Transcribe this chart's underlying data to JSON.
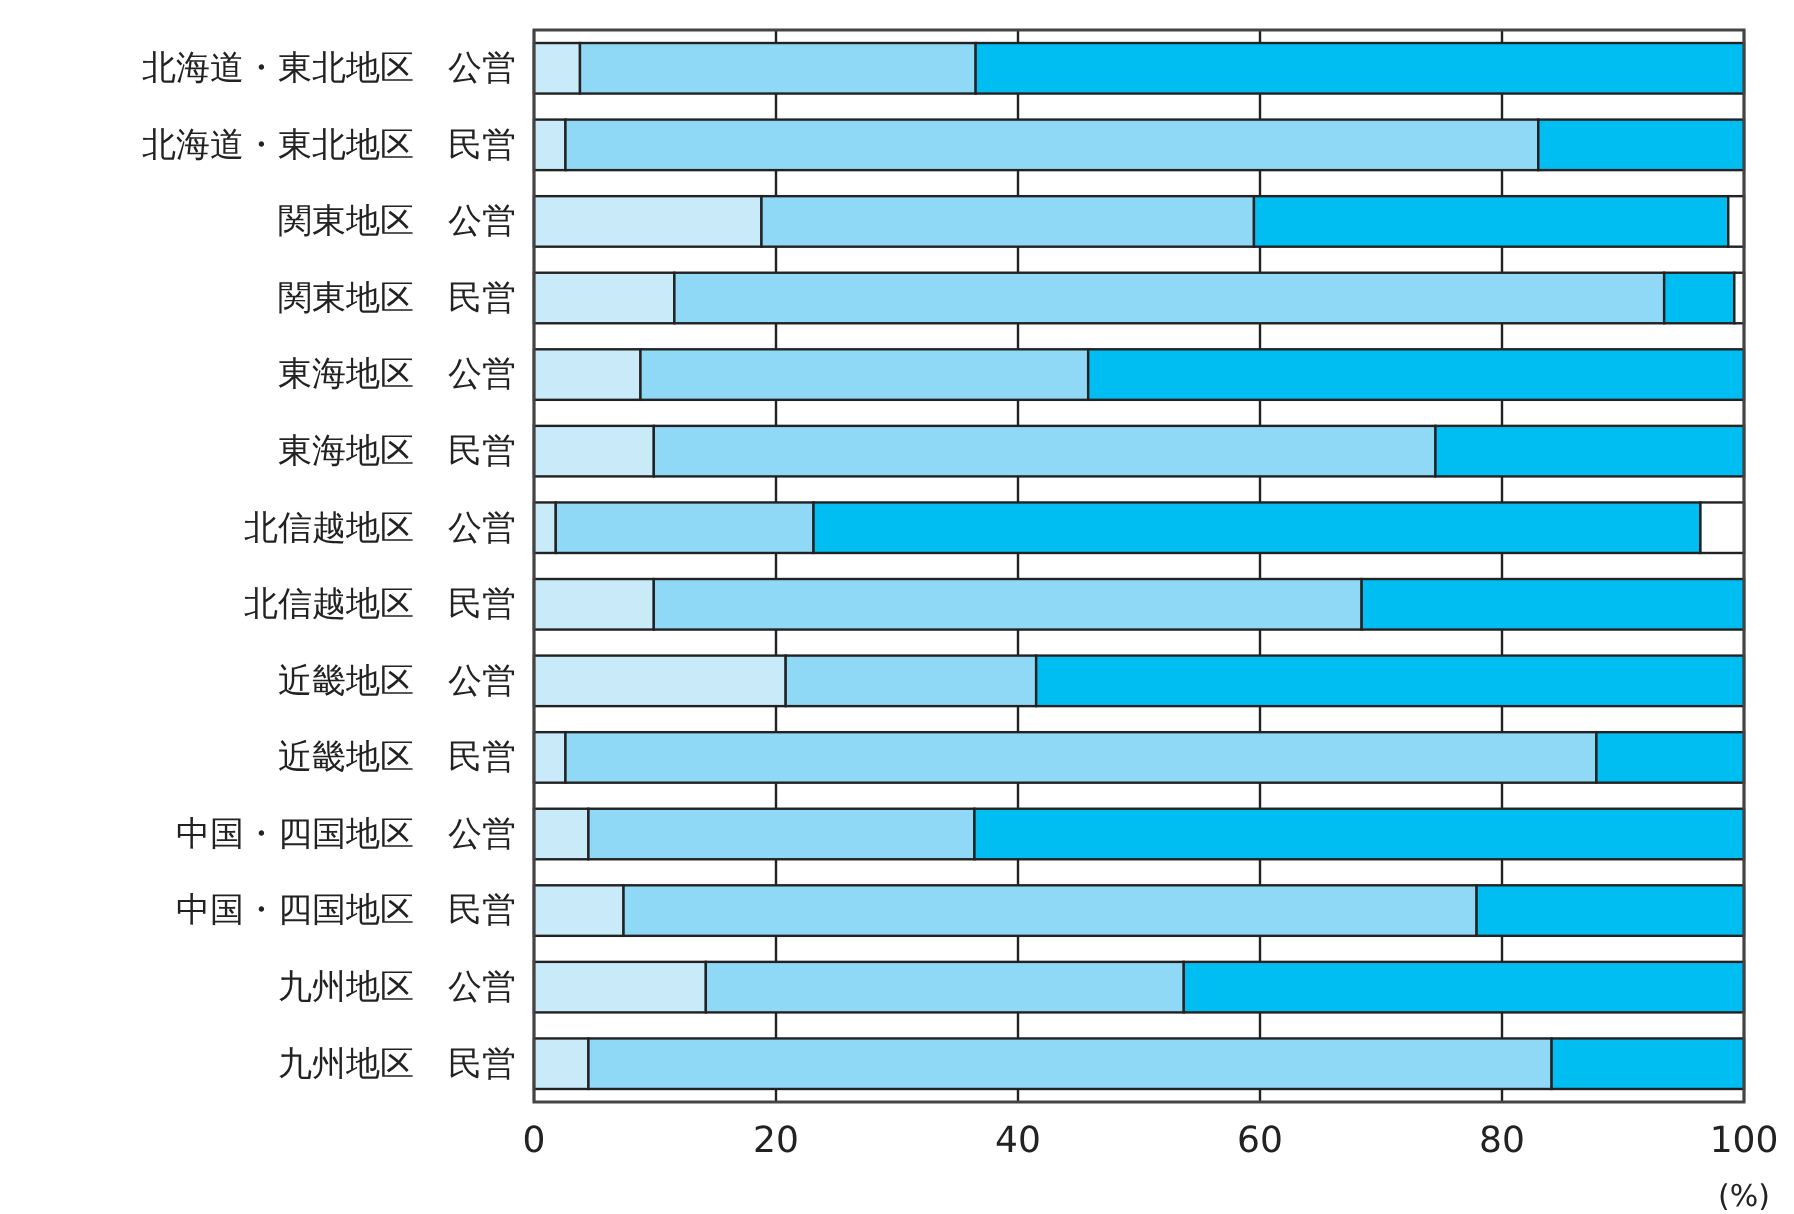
{
  "chart_data": {
    "type": "bar",
    "orientation": "horizontal",
    "stacked": true,
    "xlabel": "(%)",
    "categories": [
      "北海道・東北地区　公営",
      "北海道・東北地区　民営",
      "関東地区　公営",
      "関東地区　民営",
      "東海地区　公営",
      "東海地区　民営",
      "北信越地区　公営",
      "北信越地区　民営",
      "近畿地区　公営",
      "近畿地区　民営",
      "中国・四国地区　公営",
      "中国・四国地区　民営",
      "九州地区　公営",
      "九州地区　民営"
    ],
    "series": [
      {
        "color": "#c8eaf9",
        "values": [
          3.8,
          2.6,
          18.8,
          11.6,
          8.8,
          9.9,
          1.8,
          9.9,
          20.8,
          2.6,
          4.5,
          7.4,
          14.2,
          4.5
        ]
      },
      {
        "color": "#8fd8f6",
        "values": [
          32.7,
          80.4,
          40.7,
          81.8,
          37.0,
          64.6,
          21.3,
          58.5,
          20.7,
          85.2,
          31.9,
          70.5,
          39.5,
          79.6
        ]
      },
      {
        "color": "#00bef2",
        "values": [
          63.5,
          17.0,
          39.2,
          5.8,
          54.2,
          25.5,
          73.3,
          31.6,
          58.5,
          12.2,
          63.6,
          22.1,
          46.3,
          15.9
        ]
      },
      {
        "color": "#ffffff",
        "values": [
          0,
          0,
          1.3,
          0.8,
          0,
          0,
          3.6,
          0,
          0,
          0,
          0,
          0,
          0,
          0
        ]
      }
    ],
    "xlim": [
      0,
      100
    ],
    "xticks": [
      0,
      20,
      40,
      60,
      80,
      100
    ],
    "grid": "x"
  }
}
